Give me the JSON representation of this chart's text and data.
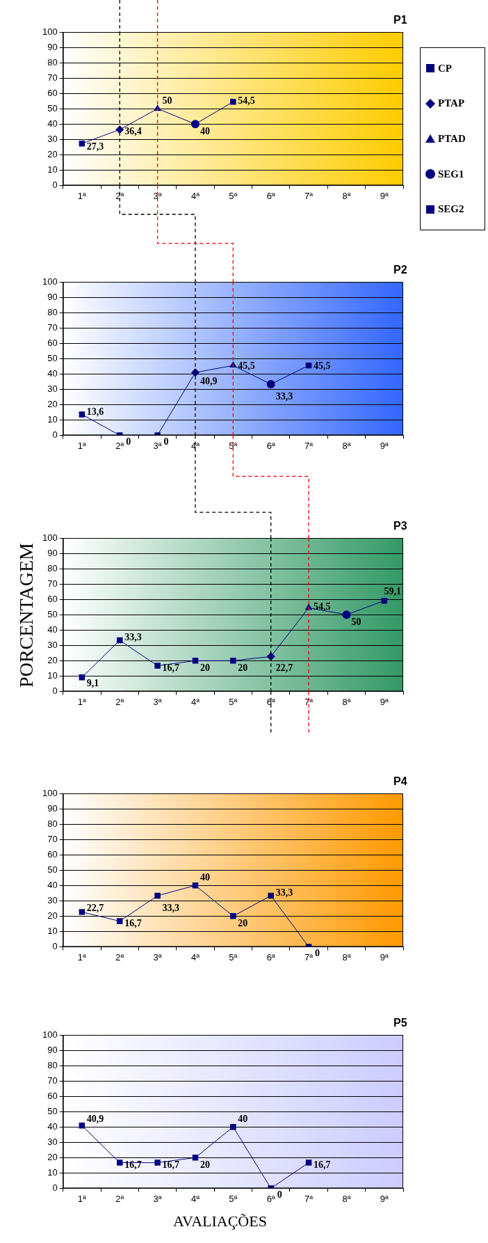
{
  "chart_data": [
    {
      "type": "line",
      "title": "P1",
      "categories": [
        "1ª",
        "2ª",
        "3ª",
        "4ª",
        "5ª",
        "6ª",
        "7ª",
        "8ª",
        "9ª"
      ],
      "ylim": [
        0,
        100
      ],
      "yticks": [
        0,
        10,
        20,
        30,
        40,
        50,
        60,
        70,
        80,
        90,
        100
      ],
      "grid": "y",
      "legend": "right",
      "ref_lines": [
        {
          "axis": "x",
          "value": "2ª",
          "color": "#000000",
          "line_style": "dashed"
        },
        {
          "axis": "x",
          "value": "3ª",
          "color": "#ff0000",
          "line_style": "dashed"
        }
      ],
      "series": [
        {
          "type": "line",
          "color": "#000080",
          "marker": "none",
          "values": [
            27.3,
            36.4,
            50,
            40,
            54.5,
            null,
            null,
            null,
            null
          ],
          "value_labels": [
            "27,3",
            "36,4",
            "50",
            "40",
            "54,5",
            null,
            null,
            null,
            null
          ]
        },
        {
          "type": "scatter",
          "name": "CP",
          "color": "#000080",
          "marker": "square",
          "values": [
            27.3,
            null,
            null,
            null,
            null,
            null,
            null,
            null,
            null
          ]
        },
        {
          "type": "scatter",
          "name": "PTAP",
          "color": "#000080",
          "marker": "diamond",
          "values": [
            null,
            36.4,
            null,
            null,
            null,
            null,
            null,
            null,
            null
          ]
        },
        {
          "type": "scatter",
          "name": "PTAD",
          "color": "#000080",
          "marker": "triangle",
          "values": [
            null,
            null,
            50,
            null,
            null,
            null,
            null,
            null,
            null
          ]
        },
        {
          "type": "scatter",
          "name": "SEG1",
          "color": "#000080",
          "marker": "circle",
          "values": [
            null,
            null,
            null,
            40,
            null,
            null,
            null,
            null,
            null
          ]
        },
        {
          "type": "scatter",
          "name": "SEG2",
          "color": "#000080",
          "marker": "square",
          "values": [
            null,
            null,
            null,
            null,
            54.5,
            null,
            null,
            null,
            null
          ]
        }
      ]
    },
    {
      "type": "line",
      "title": "P2",
      "categories": [
        "1ª",
        "2ª",
        "3ª",
        "4ª",
        "5ª",
        "6ª",
        "7ª",
        "8ª",
        "9ª"
      ],
      "ylim": [
        0,
        100
      ],
      "yticks": [
        0,
        10,
        20,
        30,
        40,
        50,
        60,
        70,
        80,
        90,
        100
      ],
      "grid": "y",
      "ref_lines": [
        {
          "axis": "x",
          "value": "4ª",
          "color": "#000000",
          "line_style": "dashed"
        },
        {
          "axis": "x",
          "value": "5ª",
          "color": "#ff0000",
          "line_style": "dashed"
        }
      ],
      "series": [
        {
          "type": "line",
          "color": "#000080",
          "marker": "none",
          "values": [
            13.6,
            0,
            0,
            40.9,
            45.5,
            33.3,
            45.5,
            null,
            null
          ],
          "value_labels": [
            "13,6",
            "0",
            "0",
            "40,9",
            "45,5",
            "33,3",
            "45,5",
            null,
            null
          ]
        },
        {
          "type": "scatter",
          "color": "#000080",
          "marker": "square",
          "values": [
            13.6,
            0,
            0,
            null,
            null,
            null,
            null,
            null,
            null
          ]
        },
        {
          "type": "scatter",
          "color": "#000080",
          "marker": "diamond",
          "values": [
            null,
            null,
            null,
            40.9,
            null,
            null,
            null,
            null,
            null
          ]
        },
        {
          "type": "scatter",
          "color": "#000080",
          "marker": "triangle",
          "values": [
            null,
            null,
            null,
            null,
            45.5,
            null,
            null,
            null,
            null
          ]
        },
        {
          "type": "scatter",
          "color": "#000080",
          "marker": "circle",
          "values": [
            null,
            null,
            null,
            null,
            null,
            33.3,
            null,
            null,
            null
          ]
        },
        {
          "type": "scatter",
          "color": "#000080",
          "marker": "square",
          "values": [
            null,
            null,
            null,
            null,
            null,
            null,
            45.5,
            null,
            null
          ]
        }
      ]
    },
    {
      "type": "line",
      "title": "P3",
      "ylabel": "PORCENTAGEM",
      "categories": [
        "1ª",
        "2ª",
        "3ª",
        "4ª",
        "5ª",
        "6ª",
        "7ª",
        "8ª",
        "9ª"
      ],
      "ylim": [
        0,
        100
      ],
      "yticks": [
        0,
        10,
        20,
        30,
        40,
        50,
        60,
        70,
        80,
        90,
        100
      ],
      "grid": "y",
      "ref_lines": [
        {
          "axis": "x",
          "value": "6ª",
          "color": "#000000",
          "line_style": "dashed"
        },
        {
          "axis": "x",
          "value": "7ª",
          "color": "#ff0000",
          "line_style": "dashed"
        }
      ],
      "series": [
        {
          "type": "line",
          "color": "#000080",
          "marker": "none",
          "values": [
            9.1,
            33.3,
            16.7,
            20,
            20,
            22.7,
            54.5,
            50,
            59.1
          ],
          "value_labels": [
            "9,1",
            "33,3",
            "16,7",
            "20",
            "20",
            "22,7",
            "54,5",
            "50",
            "59,1"
          ]
        },
        {
          "type": "scatter",
          "color": "#000080",
          "marker": "square",
          "values": [
            9.1,
            33.3,
            16.7,
            20,
            20,
            null,
            null,
            null,
            null
          ]
        },
        {
          "type": "scatter",
          "color": "#000080",
          "marker": "diamond",
          "values": [
            null,
            null,
            null,
            null,
            null,
            22.7,
            null,
            null,
            null
          ]
        },
        {
          "type": "scatter",
          "color": "#000080",
          "marker": "triangle",
          "values": [
            null,
            null,
            null,
            null,
            null,
            null,
            54.5,
            null,
            null
          ]
        },
        {
          "type": "scatter",
          "color": "#000080",
          "marker": "circle",
          "values": [
            null,
            null,
            null,
            null,
            null,
            null,
            null,
            50,
            null
          ]
        },
        {
          "type": "scatter",
          "color": "#000080",
          "marker": "square",
          "values": [
            null,
            null,
            null,
            null,
            null,
            null,
            null,
            null,
            59.1
          ]
        }
      ]
    },
    {
      "type": "line",
      "title": "P4",
      "categories": [
        "1ª",
        "2ª",
        "3ª",
        "4ª",
        "5ª",
        "6ª",
        "7ª",
        "8ª",
        "9ª"
      ],
      "ylim": [
        0,
        100
      ],
      "yticks": [
        0,
        10,
        20,
        30,
        40,
        50,
        60,
        70,
        80,
        90,
        100
      ],
      "grid": "y",
      "series": [
        {
          "type": "line",
          "color": "#000080",
          "marker": "none",
          "values": [
            22.7,
            16.7,
            33.3,
            40,
            20,
            33.3,
            0,
            null,
            null
          ],
          "value_labels": [
            "22,7",
            "16,7",
            "33,3",
            "40",
            "20",
            "33,3",
            "0",
            null,
            null
          ]
        },
        {
          "type": "scatter",
          "color": "#000080",
          "marker": "square",
          "values": [
            22.7,
            16.7,
            33.3,
            40,
            20,
            33.3,
            0,
            null,
            null
          ]
        }
      ]
    },
    {
      "type": "line",
      "title": "P5",
      "xlabel": "AVALIAÇÕES",
      "categories": [
        "1ª",
        "2ª",
        "3ª",
        "4ª",
        "5ª",
        "6ª",
        "7ª",
        "8ª",
        "9ª"
      ],
      "ylim": [
        0,
        100
      ],
      "yticks": [
        0,
        10,
        20,
        30,
        40,
        50,
        60,
        70,
        80,
        90,
        100
      ],
      "grid": "y",
      "series": [
        {
          "type": "line",
          "color": "#000080",
          "marker": "none",
          "values": [
            40.9,
            16.7,
            16.7,
            20,
            40,
            0,
            16.7,
            null,
            null
          ],
          "value_labels": [
            "40,9",
            "16,7",
            "16,7",
            "20",
            "40",
            "0",
            "16,7",
            null,
            null
          ]
        },
        {
          "type": "scatter",
          "color": "#000080",
          "marker": "square",
          "values": [
            40.9,
            16.7,
            16.7,
            20,
            40,
            0,
            16.7,
            null,
            null
          ]
        }
      ]
    }
  ]
}
